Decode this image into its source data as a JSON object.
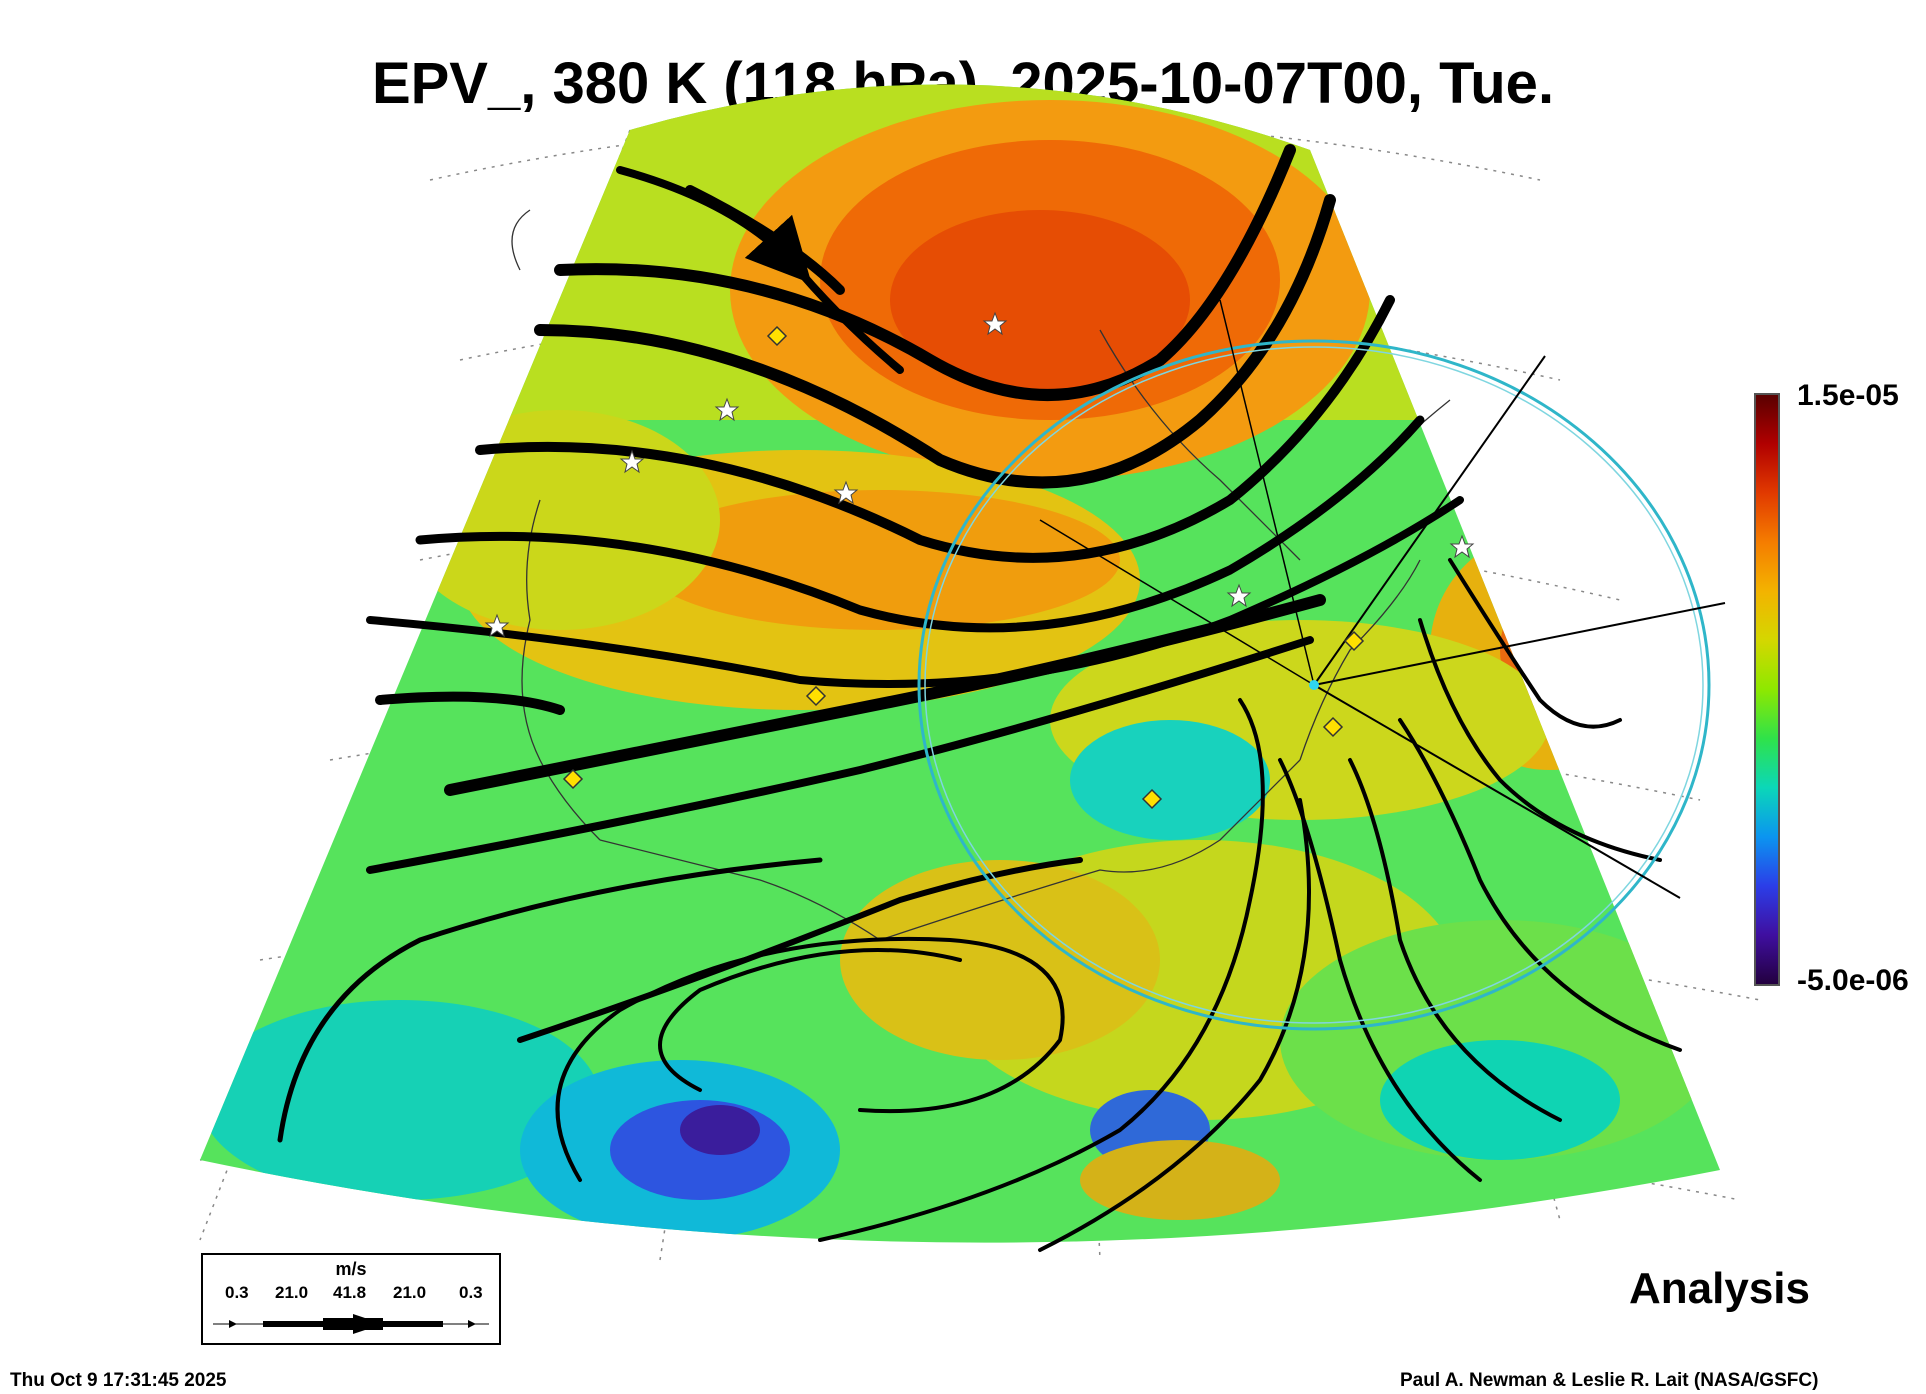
{
  "title": "EPV_, 380 K (118 hPa), 2025-10-07T00, Tue.",
  "colorbar": {
    "max_label": "1.5e-05",
    "min_label": "-5.0e-06",
    "colors": [
      "#5a0000",
      "#b10000",
      "#e13a00",
      "#f57d00",
      "#f3b300",
      "#d4d700",
      "#8ee800",
      "#2fe24a",
      "#0bd7b8",
      "#0b95f0",
      "#2b3ee8",
      "#3f0fa0",
      "#23003f"
    ]
  },
  "wind_legend": {
    "unit": "m/s",
    "values": [
      "0.3",
      "21.0",
      "41.8",
      "21.0",
      "0.3"
    ]
  },
  "analysis_label": "Analysis",
  "timestamp": "Thu Oct  9 17:31:45 2025",
  "credit": "Paul A. Newman & Leslie R. Lait (NASA/GSFC)"
}
